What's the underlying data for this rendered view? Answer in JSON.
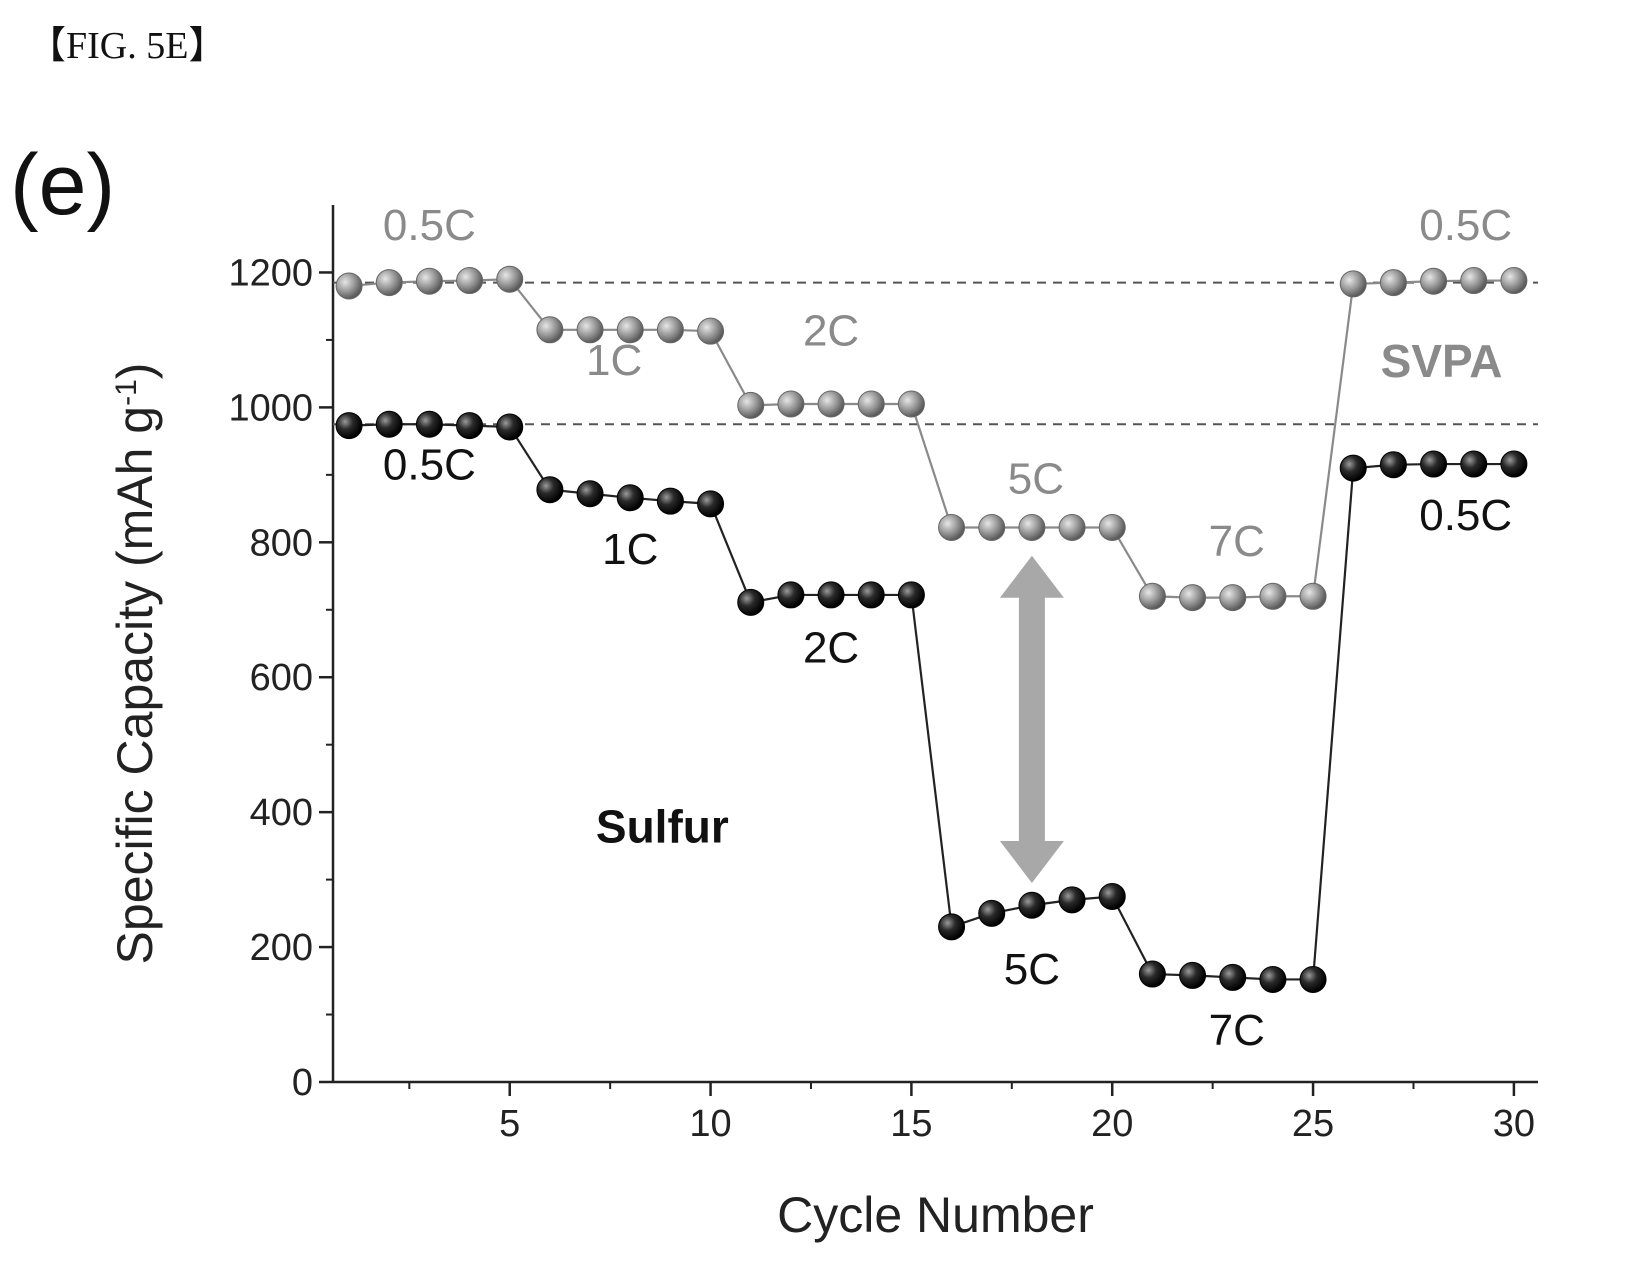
{
  "figure_label": "【FIG. 5E】",
  "panel_label": "(e)",
  "chart_data": {
    "type": "line",
    "xlabel": "Cycle Number",
    "ylabel": "Specific Capacity (mAh g",
    "ylabel_sup": "-1",
    "ylabel_close": ")",
    "xlim": [
      0.6,
      30.6
    ],
    "ylim": [
      0,
      1300
    ],
    "xticks": [
      5,
      10,
      15,
      20,
      25,
      30
    ],
    "yticks": [
      0,
      200,
      400,
      600,
      800,
      1000,
      1200
    ],
    "x": [
      1,
      2,
      3,
      4,
      5,
      6,
      7,
      8,
      9,
      10,
      11,
      12,
      13,
      14,
      15,
      16,
      17,
      18,
      19,
      20,
      21,
      22,
      23,
      24,
      25,
      26,
      27,
      28,
      29,
      30
    ],
    "reference_lines": [
      1185,
      975
    ],
    "series": [
      {
        "name": "SVPA",
        "color": "#8f8f8f",
        "values": [
          1180,
          1185,
          1187,
          1188,
          1190,
          1115,
          1115,
          1115,
          1115,
          1113,
          1003,
          1005,
          1005,
          1005,
          1005,
          822,
          822,
          822,
          822,
          822,
          720,
          718,
          718,
          720,
          720,
          1183,
          1185,
          1187,
          1188,
          1188
        ]
      },
      {
        "name": "Sulfur",
        "color": "#111111",
        "values": [
          973,
          975,
          975,
          973,
          971,
          878,
          872,
          866,
          861,
          857,
          711,
          722,
          722,
          722,
          722,
          230,
          250,
          262,
          270,
          275,
          160,
          158,
          155,
          152,
          152,
          910,
          915,
          916,
          916,
          916
        ]
      }
    ],
    "annotations": [
      {
        "text": "0.5C",
        "series": "SVPA",
        "x": 3,
        "y": 1248
      },
      {
        "text": "1C",
        "series": "SVPA",
        "x": 7.6,
        "y": 1048
      },
      {
        "text": "2C",
        "series": "SVPA",
        "x": 13.0,
        "y": 1092
      },
      {
        "text": "5C",
        "series": "SVPA",
        "x": 18.1,
        "y": 872
      },
      {
        "text": "7C",
        "series": "SVPA",
        "x": 23.1,
        "y": 780
      },
      {
        "text": "0.5C",
        "series": "SVPA",
        "x": 28.8,
        "y": 1248
      },
      {
        "text": "0.5C",
        "series": "Sulfur",
        "x": 3,
        "y": 893
      },
      {
        "text": "1C",
        "series": "Sulfur",
        "x": 8.0,
        "y": 768
      },
      {
        "text": "2C",
        "series": "Sulfur",
        "x": 13.0,
        "y": 622
      },
      {
        "text": "5C",
        "series": "Sulfur",
        "x": 18.0,
        "y": 145
      },
      {
        "text": "7C",
        "series": "Sulfur",
        "x": 23.1,
        "y": 55
      },
      {
        "text": "0.5C",
        "series": "Sulfur",
        "x": 28.8,
        "y": 818
      },
      {
        "text": "SVPA",
        "series": "SVPA",
        "x": 28.2,
        "y": 1045,
        "kind": "series-name"
      },
      {
        "text": "Sulfur",
        "series": "Sulfur",
        "x": 8.8,
        "y": 355,
        "kind": "series-name"
      }
    ],
    "double_arrow": {
      "x": 18,
      "y_top": 780,
      "y_bottom": 295,
      "color": "#a8a8a8"
    },
    "grid": false,
    "legend": "none"
  }
}
